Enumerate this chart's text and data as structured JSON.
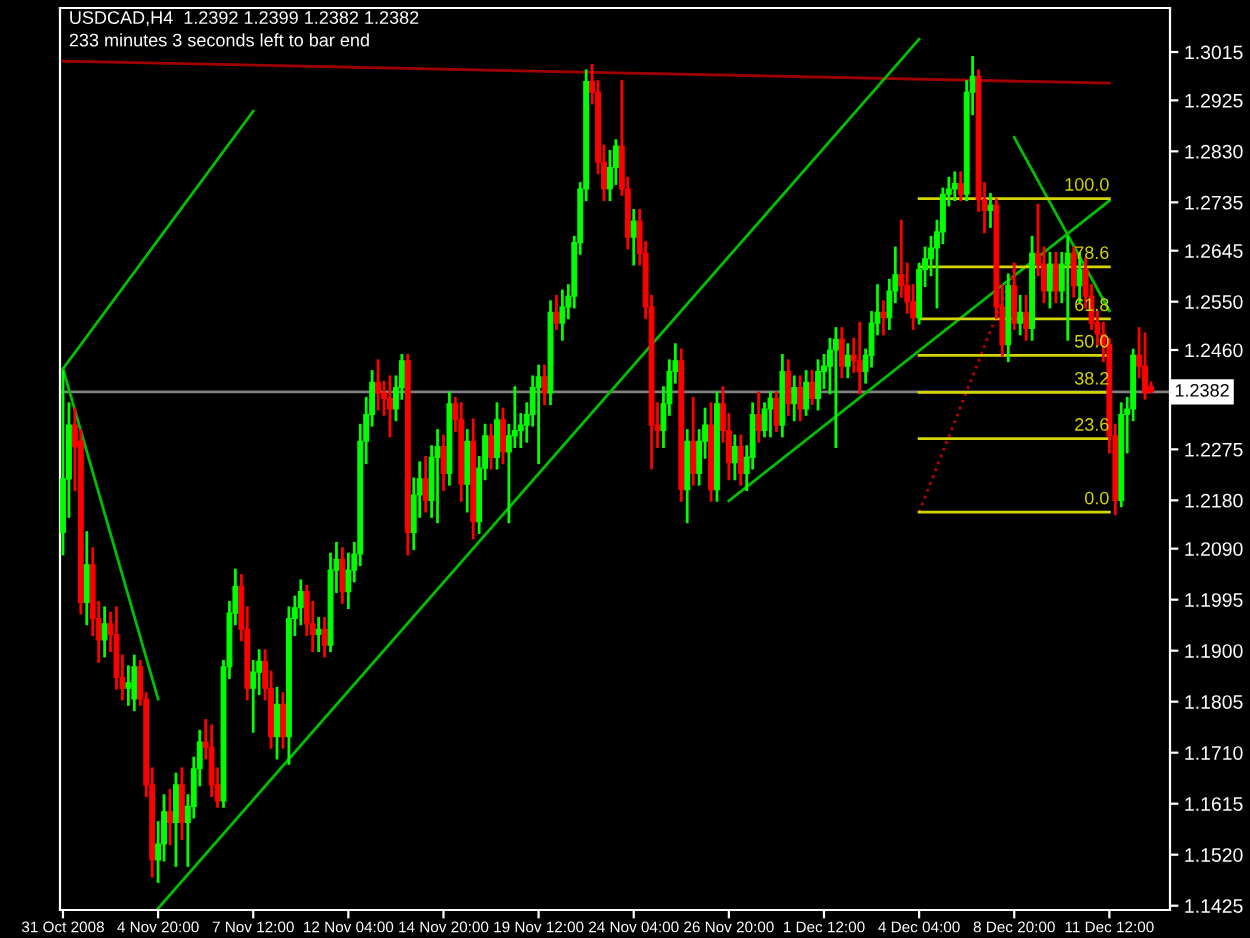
{
  "chart_data": {
    "type": "candlestick",
    "title": "USDCAD,H4  1.2392 1.2399 1.2382 1.2382",
    "subtitle": "233 minutes 3 seconds left to bar end",
    "categories": [
      "31 Oct 2008",
      null,
      null,
      null,
      null,
      null,
      null,
      null,
      null,
      null,
      null,
      null,
      null,
      null,
      null,
      null,
      "4 Nov 20:00",
      null,
      null,
      null,
      null,
      null,
      null,
      null,
      null,
      null,
      null,
      null,
      null,
      null,
      null,
      null,
      "7 Nov 12:00",
      null,
      null,
      null,
      null,
      null,
      null,
      null,
      null,
      null,
      null,
      null,
      null,
      null,
      null,
      null,
      "12 Nov 04:00",
      null,
      null,
      null,
      null,
      null,
      null,
      null,
      null,
      null,
      null,
      null,
      null,
      null,
      null,
      null,
      "14 Nov 20:00",
      null,
      null,
      null,
      null,
      null,
      null,
      null,
      null,
      null,
      null,
      null,
      null,
      null,
      null,
      null,
      "19 Nov 12:00",
      null,
      null,
      null,
      null,
      null,
      null,
      null,
      null,
      null,
      null,
      null,
      null,
      null,
      null,
      null,
      "24 Nov 04:00",
      null,
      null,
      null,
      null,
      null,
      null,
      null,
      null,
      null,
      null,
      null,
      null,
      null,
      null,
      null,
      "26 Nov 20:00",
      null,
      null,
      null,
      null,
      null,
      null,
      null,
      null,
      null,
      null,
      null,
      null,
      null,
      null,
      null,
      "1 Dec 12:00",
      null,
      null,
      null,
      null,
      null,
      null,
      null,
      null,
      null,
      null,
      null,
      null,
      null,
      null,
      null,
      "4 Dec 04:00",
      null,
      null,
      null,
      null,
      null,
      null,
      null,
      null,
      null,
      null,
      null,
      null,
      null,
      null,
      null,
      "8 Dec 20:00",
      null,
      null,
      null,
      null,
      null,
      null,
      null,
      null,
      null,
      null,
      null,
      null,
      null,
      null,
      null,
      "11 Dec 12:00",
      null,
      null,
      null,
      null,
      null,
      null,
      null
    ],
    "ohlc": [
      [
        1.212,
        1.242,
        1.208,
        1.222
      ],
      [
        1.222,
        1.236,
        1.215,
        1.232
      ],
      [
        1.232,
        1.235,
        1.22,
        1.228
      ],
      [
        1.229,
        1.231,
        1.197,
        1.199
      ],
      [
        1.199,
        1.212,
        1.195,
        1.206
      ],
      [
        1.206,
        1.209,
        1.193,
        1.196
      ],
      [
        1.196,
        1.199,
        1.188,
        1.192
      ],
      [
        1.192,
        1.198,
        1.189,
        1.195
      ],
      [
        1.195,
        1.197,
        1.19,
        1.193
      ],
      [
        1.193,
        1.198,
        1.183,
        1.185
      ],
      [
        1.185,
        1.189,
        1.181,
        1.183
      ],
      [
        1.183,
        1.187,
        1.18,
        1.184
      ],
      [
        1.181,
        1.189,
        1.179,
        1.187
      ],
      [
        1.187,
        1.188,
        1.18,
        1.181
      ],
      [
        1.181,
        1.182,
        1.163,
        1.165
      ],
      [
        1.165,
        1.168,
        1.148,
        1.151
      ],
      [
        1.151,
        1.158,
        1.147,
        1.154
      ],
      [
        1.154,
        1.163,
        1.151,
        1.16
      ],
      [
        1.16,
        1.164,
        1.154,
        1.158
      ],
      [
        1.158,
        1.167,
        1.15,
        1.165
      ],
      [
        1.165,
        1.168,
        1.155,
        1.158
      ],
      [
        1.158,
        1.163,
        1.15,
        1.161
      ],
      [
        1.161,
        1.17,
        1.159,
        1.168
      ],
      [
        1.168,
        1.175,
        1.165,
        1.173
      ],
      [
        1.173,
        1.177,
        1.17,
        1.172
      ],
      [
        1.172,
        1.176,
        1.163,
        1.165
      ],
      [
        1.165,
        1.168,
        1.161,
        1.162
      ],
      [
        1.162,
        1.188,
        1.161,
        1.187
      ],
      [
        1.187,
        1.199,
        1.185,
        1.197
      ],
      [
        1.197,
        1.205,
        1.195,
        1.202
      ],
      [
        1.202,
        1.204,
        1.192,
        1.194
      ],
      [
        1.194,
        1.198,
        1.181,
        1.183
      ],
      [
        1.183,
        1.188,
        1.175,
        1.186
      ],
      [
        1.186,
        1.19,
        1.182,
        1.188
      ],
      [
        1.188,
        1.19,
        1.181,
        1.183
      ],
      [
        1.183,
        1.186,
        1.172,
        1.174
      ],
      [
        1.174,
        1.183,
        1.17,
        1.18
      ],
      [
        1.18,
        1.182,
        1.172,
        1.174
      ],
      [
        1.174,
        1.198,
        1.169,
        1.196
      ],
      [
        1.196,
        1.2,
        1.193,
        1.198
      ],
      [
        1.198,
        1.203,
        1.195,
        1.201
      ],
      [
        1.201,
        1.202,
        1.193,
        1.195
      ],
      [
        1.195,
        1.199,
        1.19,
        1.193
      ],
      [
        1.193,
        1.196,
        1.19,
        1.194
      ],
      [
        1.194,
        1.196,
        1.189,
        1.191
      ],
      [
        1.191,
        1.208,
        1.19,
        1.205
      ],
      [
        1.205,
        1.21,
        1.201,
        1.207
      ],
      [
        1.207,
        1.209,
        1.199,
        1.201
      ],
      [
        1.201,
        1.208,
        1.198,
        1.205
      ],
      [
        1.205,
        1.21,
        1.203,
        1.208
      ],
      [
        1.208,
        1.232,
        1.206,
        1.229
      ],
      [
        1.229,
        1.237,
        1.225,
        1.234
      ],
      [
        1.234,
        1.242,
        1.232,
        1.24
      ],
      [
        1.24,
        1.244,
        1.235,
        1.238
      ],
      [
        1.238,
        1.24,
        1.234,
        1.237
      ],
      [
        1.237,
        1.241,
        1.23,
        1.235
      ],
      [
        1.235,
        1.241,
        1.233,
        1.239
      ],
      [
        1.239,
        1.245,
        1.237,
        1.244
      ],
      [
        1.244,
        1.245,
        1.208,
        1.212
      ],
      [
        1.212,
        1.222,
        1.209,
        1.219
      ],
      [
        1.219,
        1.225,
        1.215,
        1.222
      ],
      [
        1.222,
        1.226,
        1.216,
        1.218
      ],
      [
        1.218,
        1.228,
        1.215,
        1.226
      ],
      [
        1.226,
        1.231,
        1.214,
        1.228
      ],
      [
        1.228,
        1.23,
        1.22,
        1.223
      ],
      [
        1.223,
        1.238,
        1.221,
        1.236
      ],
      [
        1.236,
        1.237,
        1.231,
        1.233
      ],
      [
        1.233,
        1.236,
        1.218,
        1.221
      ],
      [
        1.221,
        1.231,
        1.216,
        1.229
      ],
      [
        1.229,
        1.233,
        1.211,
        1.214
      ],
      [
        1.214,
        1.226,
        1.212,
        1.224
      ],
      [
        1.224,
        1.232,
        1.222,
        1.23
      ],
      [
        1.23,
        1.232,
        1.224,
        1.226
      ],
      [
        1.226,
        1.236,
        1.224,
        1.233
      ],
      [
        1.233,
        1.235,
        1.225,
        1.227
      ],
      [
        1.227,
        1.232,
        1.214,
        1.23
      ],
      [
        1.23,
        1.239,
        1.228,
        1.231
      ],
      [
        1.231,
        1.234,
        1.228,
        1.232
      ],
      [
        1.232,
        1.236,
        1.229,
        1.234
      ],
      [
        1.234,
        1.241,
        1.232,
        1.239
      ],
      [
        1.239,
        1.243,
        1.225,
        1.241
      ],
      [
        1.241,
        1.243,
        1.236,
        1.238
      ],
      [
        1.238,
        1.255,
        1.236,
        1.253
      ],
      [
        1.253,
        1.256,
        1.25,
        1.251
      ],
      [
        1.251,
        1.257,
        1.248,
        1.254
      ],
      [
        1.254,
        1.258,
        1.252,
        1.256
      ],
      [
        1.256,
        1.267,
        1.254,
        1.266
      ],
      [
        1.266,
        1.277,
        1.264,
        1.276
      ],
      [
        1.276,
        1.298,
        1.274,
        1.296
      ],
      [
        1.296,
        1.299,
        1.292,
        1.294
      ],
      [
        1.294,
        1.296,
        1.279,
        1.281
      ],
      [
        1.281,
        1.284,
        1.274,
        1.276
      ],
      [
        1.276,
        1.283,
        1.274,
        1.28
      ],
      [
        1.28,
        1.285,
        1.277,
        1.284
      ],
      [
        1.284,
        1.296,
        1.275,
        1.276
      ],
      [
        1.276,
        1.278,
        1.265,
        1.267
      ],
      [
        1.267,
        1.272,
        1.262,
        1.27
      ],
      [
        1.27,
        1.272,
        1.262,
        1.264
      ],
      [
        1.264,
        1.266,
        1.252,
        1.254
      ],
      [
        1.254,
        1.256,
        1.224,
        1.232
      ],
      [
        1.232,
        1.236,
        1.228,
        1.231
      ],
      [
        1.231,
        1.239,
        1.228,
        1.236
      ],
      [
        1.236,
        1.244,
        1.234,
        1.242
      ],
      [
        1.242,
        1.247,
        1.24,
        1.244
      ],
      [
        1.244,
        1.246,
        1.218,
        1.22
      ],
      [
        1.22,
        1.231,
        1.214,
        1.229
      ],
      [
        1.229,
        1.237,
        1.221,
        1.223
      ],
      [
        1.223,
        1.231,
        1.221,
        1.229
      ],
      [
        1.229,
        1.235,
        1.226,
        1.232
      ],
      [
        1.232,
        1.236,
        1.218,
        1.22
      ],
      [
        1.22,
        1.238,
        1.218,
        1.236
      ],
      [
        1.236,
        1.239,
        1.229,
        1.231
      ],
      [
        1.231,
        1.234,
        1.222,
        1.225
      ],
      [
        1.225,
        1.23,
        1.222,
        1.228
      ],
      [
        1.228,
        1.23,
        1.221,
        1.223
      ],
      [
        1.223,
        1.228,
        1.22,
        1.226
      ],
      [
        1.226,
        1.236,
        1.224,
        1.234
      ],
      [
        1.234,
        1.238,
        1.229,
        1.231
      ],
      [
        1.231,
        1.236,
        1.23,
        1.235
      ],
      [
        1.235,
        1.238,
        1.23,
        1.237
      ],
      [
        1.237,
        1.238,
        1.231,
        1.232
      ],
      [
        1.232,
        1.245,
        1.23,
        1.242
      ],
      [
        1.242,
        1.244,
        1.234,
        1.236
      ],
      [
        1.236,
        1.241,
        1.233,
        1.239
      ],
      [
        1.239,
        1.241,
        1.233,
        1.235
      ],
      [
        1.235,
        1.242,
        1.234,
        1.24
      ],
      [
        1.24,
        1.242,
        1.236,
        1.237
      ],
      [
        1.237,
        1.244,
        1.235,
        1.242
      ],
      [
        1.242,
        1.245,
        1.239,
        1.243
      ],
      [
        1.243,
        1.248,
        1.238,
        1.246
      ],
      [
        1.246,
        1.25,
        1.228,
        1.248
      ],
      [
        1.248,
        1.25,
        1.241,
        1.243
      ],
      [
        1.243,
        1.247,
        1.241,
        1.245
      ],
      [
        1.245,
        1.248,
        1.242,
        1.244
      ],
      [
        1.244,
        1.251,
        1.238,
        1.242
      ],
      [
        1.242,
        1.246,
        1.24,
        1.245
      ],
      [
        1.245,
        1.253,
        1.243,
        1.251
      ],
      [
        1.251,
        1.258,
        1.249,
        1.253
      ],
      [
        1.253,
        1.255,
        1.249,
        1.252
      ],
      [
        1.252,
        1.259,
        1.25,
        1.257
      ],
      [
        1.257,
        1.265,
        1.255,
        1.26
      ],
      [
        1.26,
        1.27,
        1.256,
        1.258
      ],
      [
        1.258,
        1.262,
        1.253,
        1.255
      ],
      [
        1.255,
        1.258,
        1.25,
        1.252
      ],
      [
        1.252,
        1.262,
        1.251,
        1.261
      ],
      [
        1.261,
        1.265,
        1.258,
        1.263
      ],
      [
        1.263,
        1.267,
        1.26,
        1.265
      ],
      [
        1.265,
        1.27,
        1.254,
        1.268
      ],
      [
        1.268,
        1.276,
        1.266,
        1.275
      ],
      [
        1.275,
        1.278,
        1.273,
        1.276
      ],
      [
        1.276,
        1.279,
        1.274,
        1.277
      ],
      [
        1.277,
        1.279,
        1.274,
        1.275
      ],
      [
        1.275,
        1.296,
        1.274,
        1.294
      ],
      [
        1.294,
        1.3005,
        1.29,
        1.297
      ],
      [
        1.297,
        1.298,
        1.272,
        1.274
      ],
      [
        1.274,
        1.277,
        1.268,
        1.272
      ],
      [
        1.272,
        1.275,
        1.269,
        1.273
      ],
      [
        1.273,
        1.274,
        1.252,
        1.254
      ],
      [
        1.254,
        1.258,
        1.245,
        1.247
      ],
      [
        1.247,
        1.26,
        1.244,
        1.258
      ],
      [
        1.258,
        1.262,
        1.25,
        1.251
      ],
      [
        1.251,
        1.256,
        1.249,
        1.253
      ],
      [
        1.253,
        1.256,
        1.248,
        1.25
      ],
      [
        1.25,
        1.267,
        1.248,
        1.264
      ],
      [
        1.264,
        1.273,
        1.26,
        1.262
      ],
      [
        1.262,
        1.265,
        1.255,
        1.257
      ],
      [
        1.257,
        1.264,
        1.254,
        1.262
      ],
      [
        1.262,
        1.264,
        1.255,
        1.257
      ],
      [
        1.257,
        1.264,
        1.255,
        1.262
      ],
      [
        1.262,
        1.267,
        1.248,
        1.264
      ],
      [
        1.264,
        1.265,
        1.256,
        1.258
      ],
      [
        1.258,
        1.264,
        1.255,
        1.261
      ],
      [
        1.261,
        1.263,
        1.254,
        1.256
      ],
      [
        1.256,
        1.258,
        1.25,
        1.251
      ],
      [
        1.251,
        1.253,
        1.247,
        1.249
      ],
      [
        1.249,
        1.251,
        1.244,
        1.247
      ],
      [
        1.247,
        1.248,
        1.227,
        1.23
      ],
      [
        1.23,
        1.232,
        1.2155,
        1.218
      ],
      [
        1.218,
        1.236,
        1.217,
        1.234
      ],
      [
        1.234,
        1.237,
        1.227,
        1.235
      ],
      [
        1.235,
        1.246,
        1.233,
        1.245
      ],
      [
        1.245,
        1.25,
        1.241,
        1.243
      ],
      [
        1.243,
        1.249,
        1.237,
        1.238
      ],
      [
        1.2392,
        1.2399,
        1.2382,
        1.2382
      ]
    ],
    "colors": [
      "#00ff00",
      "#00ff00",
      "#ff0000",
      "#ff0000",
      "#00ff00",
      "#ff0000",
      "#ff0000",
      "#00ff00",
      "#ff0000",
      "#ff0000",
      "#ff0000",
      "#00ff00",
      "#00ff00",
      "#ff0000",
      "#ff0000",
      "#ff0000",
      "#00ff00",
      "#00ff00",
      "#ff0000",
      "#00ff00",
      "#ff0000",
      "#00ff00",
      "#00ff00",
      "#00ff00",
      "#ff0000",
      "#ff0000",
      "#ff0000",
      "#00ff00",
      "#00ff00",
      "#00ff00",
      "#ff0000",
      "#ff0000",
      "#00ff00",
      "#00ff00",
      "#ff0000",
      "#ff0000",
      "#00ff00",
      "#ff0000",
      "#00ff00",
      "#00ff00",
      "#00ff00",
      "#ff0000",
      "#ff0000",
      "#00ff00",
      "#ff0000",
      "#00ff00",
      "#00ff00",
      "#ff0000",
      "#00ff00",
      "#00ff00",
      "#00ff00",
      "#00ff00",
      "#00ff00",
      "#ff0000",
      "#ff0000",
      "#ff0000",
      "#00ff00",
      "#00ff00",
      "#ff0000",
      "#00ff00",
      "#00ff00",
      "#ff0000",
      "#00ff00",
      "#00ff00",
      "#ff0000",
      "#00ff00",
      "#ff0000",
      "#ff0000",
      "#00ff00",
      "#ff0000",
      "#00ff00",
      "#00ff00",
      "#ff0000",
      "#00ff00",
      "#ff0000",
      "#00ff00",
      "#00ff00",
      "#00ff00",
      "#00ff00",
      "#00ff00",
      "#00ff00",
      "#ff0000",
      "#00ff00",
      "#ff0000",
      "#00ff00",
      "#00ff00",
      "#00ff00",
      "#00ff00",
      "#00ff00",
      "#ff0000",
      "#ff0000",
      "#ff0000",
      "#00ff00",
      "#00ff00",
      "#ff0000",
      "#ff0000",
      "#00ff00",
      "#ff0000",
      "#ff0000",
      "#ff0000",
      "#ff0000",
      "#00ff00",
      "#00ff00",
      "#00ff00",
      "#ff0000",
      "#00ff00",
      "#ff0000",
      "#00ff00",
      "#00ff00",
      "#ff0000",
      "#00ff00",
      "#ff0000",
      "#ff0000",
      "#00ff00",
      "#ff0000",
      "#00ff00",
      "#00ff00",
      "#ff0000",
      "#00ff00",
      "#00ff00",
      "#ff0000",
      "#00ff00",
      "#ff0000",
      "#00ff00",
      "#ff0000",
      "#00ff00",
      "#ff0000",
      "#00ff00",
      "#00ff00",
      "#00ff00",
      "#00ff00",
      "#ff0000",
      "#00ff00",
      "#ff0000",
      "#ff0000",
      "#00ff00",
      "#00ff00",
      "#00ff00",
      "#ff0000",
      "#00ff00",
      "#00ff00",
      "#ff0000",
      "#ff0000",
      "#ff0000",
      "#00ff00",
      "#00ff00",
      "#00ff00",
      "#00ff00",
      "#00ff00",
      "#00ff00",
      "#00ff00",
      "#ff0000",
      "#00ff00",
      "#00ff00",
      "#ff0000",
      "#ff0000",
      "#00ff00",
      "#ff0000",
      "#ff0000",
      "#00ff00",
      "#ff0000",
      "#00ff00",
      "#ff0000",
      "#00ff00",
      "#ff0000",
      "#ff0000",
      "#00ff00",
      "#ff0000",
      "#00ff00",
      "#00ff00",
      "#ff0000",
      "#00ff00",
      "#ff0000",
      "#ff0000",
      "#ff0000",
      "#ff0000",
      "#ff0000",
      "#ff0000",
      "#00ff00",
      "#00ff00",
      "#00ff00",
      "#ff0000",
      "#ff0000",
      "#ff0000"
    ],
    "series": [
      {
        "type": "line",
        "color": "#a00000",
        "x": [
          "31 Oct 2008",
          "11 Dec 12:00"
        ],
        "values": [
          1.2998,
          1.2957
        ]
      },
      {
        "type": "line",
        "color": "#00c000",
        "x": [
          "31 Oct 2008",
          "4 Nov 20:00",
          "7 Nov 12:00"
        ],
        "values": [
          1.2425,
          1.2665,
          1.2905
        ]
      },
      {
        "type": "line",
        "color": "#00c000",
        "x": [
          "31 Oct 2008",
          "4 Nov 20:00"
        ],
        "values": [
          1.2425,
          1.181
        ]
      },
      {
        "type": "line",
        "color": "#00c000",
        "x": [
          "4 Nov 20:00",
          "4 Dec 04:00"
        ],
        "values": [
          1.142,
          1.3039
        ]
      },
      {
        "type": "line",
        "color": "#00c000",
        "x": [
          "26 Nov 20:00",
          "11 Dec 12:00"
        ],
        "values": [
          1.2179,
          1.2738
        ]
      },
      {
        "type": "line",
        "color": "#00c000",
        "x": [
          "8 Dec 20:00",
          "11 Dec 12:00"
        ],
        "values": [
          1.2856,
          1.2533
        ]
      },
      {
        "type": "line",
        "color": "#c00000",
        "line_style": "dotted",
        "x": [
          "4 Dec 04:00",
          "8 Dec 20:00"
        ],
        "values": [
          1.2158,
          1.2608
        ]
      },
      {
        "type": "line",
        "color": "#d4d400",
        "name": "100.0",
        "x": [
          "4 Dec 04:00",
          "11 Dec 12:00"
        ],
        "values": [
          1.2742,
          1.2742
        ]
      },
      {
        "type": "line",
        "color": "#d4d400",
        "name": "78.6",
        "x": [
          "4 Dec 04:00",
          "11 Dec 12:00"
        ],
        "values": [
          1.2615,
          1.2615
        ]
      },
      {
        "type": "line",
        "color": "#d4d400",
        "name": "61.8",
        "x": [
          "4 Dec 04:00",
          "11 Dec 12:00"
        ],
        "values": [
          1.2518,
          1.2518
        ]
      },
      {
        "type": "line",
        "color": "#d4d400",
        "name": "50.0",
        "x": [
          "4 Dec 04:00",
          "11 Dec 12:00"
        ],
        "values": [
          1.245,
          1.245
        ]
      },
      {
        "type": "line",
        "color": "#d4d400",
        "name": "38.2",
        "x": [
          "4 Dec 04:00",
          "11 Dec 12:00"
        ],
        "values": [
          1.2381,
          1.2381
        ]
      },
      {
        "type": "line",
        "color": "#d4d400",
        "name": "23.6",
        "x": [
          "4 Dec 04:00",
          "11 Dec 12:00"
        ],
        "values": [
          1.2295,
          1.2295
        ]
      },
      {
        "type": "line",
        "color": "#d4d400",
        "name": "0.0",
        "x": [
          "4 Dec 04:00",
          "11 Dec 12:00"
        ],
        "values": [
          1.2158,
          1.2158
        ]
      }
    ],
    "ref_lines": [
      {
        "axis": "y",
        "value": 1.2382,
        "label": "1.2382",
        "color": "#808080"
      }
    ],
    "ylim": [
      1.1417,
      1.3097
    ],
    "yticks": [
      1.3015,
      1.2925,
      {
        "value": 1.283,
        "label": "1.2830"
      },
      1.2735,
      1.2645,
      {
        "value": 1.255,
        "label": "1.2550"
      },
      {
        "value": 1.246,
        "label": "1.2460"
      },
      1.2275,
      {
        "value": 1.218,
        "label": "1.2180"
      },
      {
        "value": 1.209,
        "label": "1.2090"
      },
      1.1995,
      {
        "value": 1.19,
        "label": "1.1900"
      },
      1.1805,
      {
        "value": 1.171,
        "label": "1.1710"
      },
      1.1615,
      {
        "value": 1.152,
        "label": "1.1520"
      },
      1.1425
    ]
  }
}
